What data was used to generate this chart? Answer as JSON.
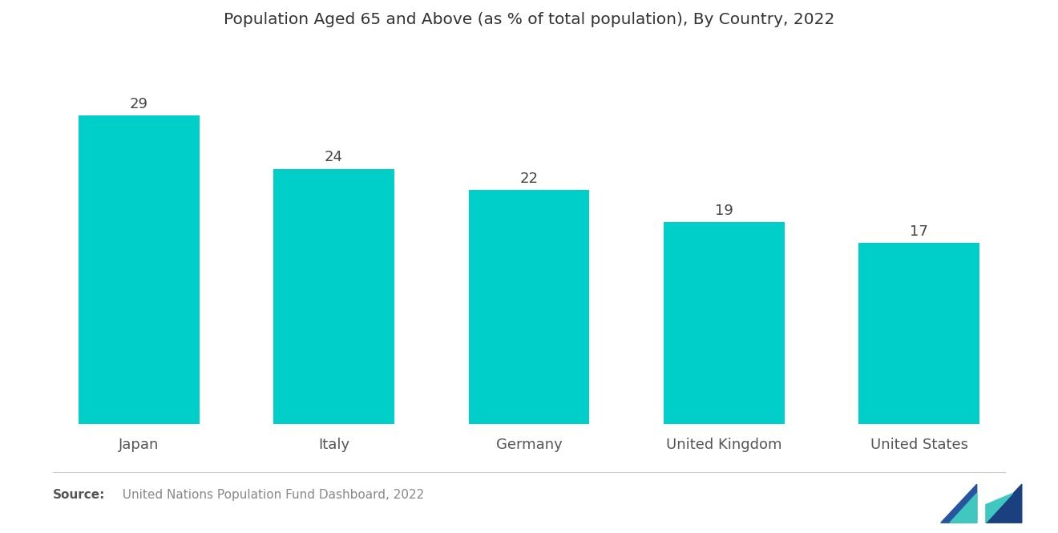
{
  "title": "Population Aged 65 and Above (as % of total population), By Country, 2022",
  "categories": [
    "Japan",
    "Italy",
    "Germany",
    "United Kingdom",
    "United States"
  ],
  "values": [
    29,
    24,
    22,
    19,
    17
  ],
  "bar_color": "#00CEC9",
  "background_color": "#ffffff",
  "title_fontsize": 14.5,
  "label_fontsize": 13,
  "value_fontsize": 13,
  "source_bold": "Source:",
  "source_text": "  United Nations Population Fund Dashboard, 2022",
  "ylim": [
    0,
    35
  ],
  "bar_width": 0.62
}
